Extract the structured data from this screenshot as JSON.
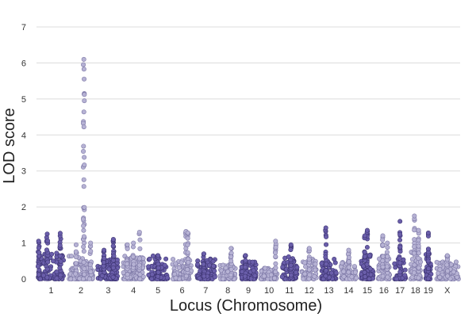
{
  "chart_data": {
    "type": "scatter",
    "subtype": "manhattan",
    "title": "",
    "xlabel": "Locus (Chromosome)",
    "ylabel": "LOD score",
    "ylim": [
      0,
      7
    ],
    "yticks": [
      0,
      1,
      2,
      3,
      4,
      5,
      6,
      7
    ],
    "grid": true,
    "colors": {
      "dark": "#6a5eaa",
      "dark_stroke": "#3e3573",
      "light": "#b6b2d4",
      "light_stroke": "#7d78a6",
      "grid": "#dcdcdc"
    },
    "chromosomes": [
      {
        "label": "1",
        "length": 195,
        "color": "dark",
        "base": 0.45,
        "peaks": [
          {
            "pos": 0.02,
            "lod": 1.05
          },
          {
            "pos": 0.35,
            "lod": 1.25
          },
          {
            "pos": 0.85,
            "lod": 1.27
          }
        ]
      },
      {
        "label": "2",
        "length": 182,
        "color": "light",
        "base": 0.4,
        "peaks": [
          {
            "pos": 0.62,
            "lod": 6.1
          },
          {
            "pos": 0.3,
            "lod": 0.95
          },
          {
            "pos": 0.9,
            "lod": 1.0
          }
        ]
      },
      {
        "label": "3",
        "length": 160,
        "color": "dark",
        "base": 0.35,
        "peaks": [
          {
            "pos": 0.75,
            "lod": 1.1
          },
          {
            "pos": 0.3,
            "lod": 0.8
          }
        ]
      },
      {
        "label": "4",
        "length": 156,
        "color": "light",
        "base": 0.4,
        "peaks": [
          {
            "pos": 0.8,
            "lod": 1.3
          },
          {
            "pos": 0.2,
            "lod": 0.95
          },
          {
            "pos": 0.5,
            "lod": 1.0
          }
        ]
      },
      {
        "label": "5",
        "length": 151,
        "color": "dark",
        "base": 0.4,
        "peaks": [
          {
            "pos": 0.5,
            "lod": 0.65
          }
        ]
      },
      {
        "label": "6",
        "length": 149,
        "color": "light",
        "base": 0.35,
        "peaks": [
          {
            "pos": 0.7,
            "lod": 1.32
          },
          {
            "pos": 0.8,
            "lod": 1.28
          }
        ]
      },
      {
        "label": "7",
        "length": 145,
        "color": "dark",
        "base": 0.35,
        "peaks": [
          {
            "pos": 0.4,
            "lod": 0.7
          }
        ]
      },
      {
        "label": "8",
        "length": 129,
        "color": "light",
        "base": 0.25,
        "peaks": [
          {
            "pos": 0.7,
            "lod": 0.85
          }
        ]
      },
      {
        "label": "9",
        "length": 124,
        "color": "dark",
        "base": 0.3,
        "peaks": [
          {
            "pos": 0.3,
            "lod": 0.65
          }
        ]
      },
      {
        "label": "10",
        "length": 130,
        "color": "light",
        "base": 0.2,
        "peaks": [
          {
            "pos": 0.9,
            "lod": 1.05
          }
        ]
      },
      {
        "label": "11",
        "length": 122,
        "color": "dark",
        "base": 0.4,
        "peaks": [
          {
            "pos": 0.6,
            "lod": 0.95
          }
        ]
      },
      {
        "label": "12",
        "length": 120,
        "color": "light",
        "base": 0.35,
        "peaks": [
          {
            "pos": 0.5,
            "lod": 0.85
          }
        ]
      },
      {
        "label": "13",
        "length": 120,
        "color": "dark",
        "base": 0.35,
        "peaks": [
          {
            "pos": 0.3,
            "lod": 1.42
          }
        ]
      },
      {
        "label": "14",
        "length": 124,
        "color": "light",
        "base": 0.3,
        "peaks": [
          {
            "pos": 0.5,
            "lod": 0.8
          }
        ]
      },
      {
        "label": "15",
        "length": 103,
        "color": "dark",
        "base": 0.45,
        "peaks": [
          {
            "pos": 0.5,
            "lod": 1.35
          },
          {
            "pos": 0.3,
            "lod": 1.2
          }
        ]
      },
      {
        "label": "16",
        "length": 98,
        "color": "light",
        "base": 0.4,
        "peaks": [
          {
            "pos": 0.4,
            "lod": 1.2
          },
          {
            "pos": 0.8,
            "lod": 1.0
          }
        ]
      },
      {
        "label": "17",
        "length": 95,
        "color": "dark",
        "base": 0.4,
        "peaks": [
          {
            "pos": 0.5,
            "lod": 1.6
          }
        ]
      },
      {
        "label": "18",
        "length": 90,
        "color": "light",
        "base": 0.5,
        "peaks": [
          {
            "pos": 0.4,
            "lod": 1.75
          },
          {
            "pos": 0.8,
            "lod": 1.35
          }
        ]
      },
      {
        "label": "19",
        "length": 61,
        "color": "dark",
        "base": 0.45,
        "peaks": [
          {
            "pos": 0.5,
            "lod": 1.28
          }
        ]
      },
      {
        "label": "X",
        "length": 171,
        "color": "light",
        "base": 0.3,
        "peaks": [
          {
            "pos": 0.5,
            "lod": 0.65
          }
        ]
      }
    ]
  }
}
